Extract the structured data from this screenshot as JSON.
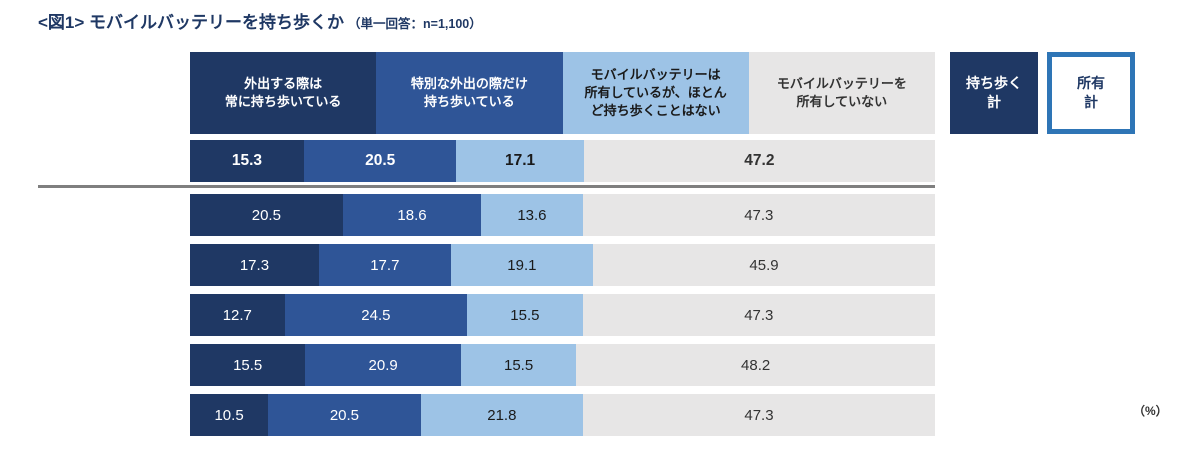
{
  "title": {
    "main": "<図1> モバイルバッテリーを持ち歩くか",
    "note": "（単一回答：n=1,100）"
  },
  "unit_label": "（%）",
  "colors": {
    "segment1": "#1F3864",
    "segment2": "#2F5597",
    "segment3": "#9DC3E6",
    "segment4": "#E7E6E6",
    "legend_outline": "#2E75B6",
    "separator": "#7F7F7F",
    "title_text": "#1F3864"
  },
  "legend": [
    {
      "label": "持ち歩く\n計",
      "style": "filled"
    },
    {
      "label": "所有\n計",
      "style": "outlined"
    }
  ],
  "chart_data": {
    "type": "bar",
    "variant": "horizontal-stacked",
    "title": "<図1> モバイルバッテリーを持ち歩くか（単一回答：n=1,100）",
    "unit": "%",
    "xlim": [
      0,
      100
    ],
    "row_count": 6,
    "emphasized_row_index": 0,
    "legend_position": "top-right",
    "series": [
      {
        "name": "外出する際は常に持ち歩いている",
        "header_label": "外出する際は\n常に持ち歩いている",
        "color": "#1F3864",
        "label_color": "#FFFFFF",
        "values": [
          15.3,
          20.5,
          17.3,
          12.7,
          15.5,
          10.5
        ]
      },
      {
        "name": "特別な外出の際だけ持ち歩いている",
        "header_label": "特別な外出の際だけ\n持ち歩いている",
        "color": "#2F5597",
        "label_color": "#FFFFFF",
        "values": [
          20.5,
          18.6,
          17.7,
          24.5,
          20.9,
          20.5
        ]
      },
      {
        "name": "モバイルバッテリーは所有しているが、ほとんど持ち歩くことはない",
        "header_label": "モバイルバッテリーは\n所有しているが、ほとん\nど持ち歩くことはない",
        "color": "#9DC3E6",
        "label_color": "#1A1A1A",
        "values": [
          17.1,
          13.6,
          19.1,
          15.5,
          15.5,
          21.8
        ]
      },
      {
        "name": "モバイルバッテリーを所有していない",
        "header_label": "モバイルバッテリーを\n所有していない",
        "color": "#E7E6E6",
        "label_color": "#333333",
        "values": [
          47.2,
          47.3,
          45.9,
          47.3,
          48.2,
          47.3
        ]
      }
    ]
  }
}
